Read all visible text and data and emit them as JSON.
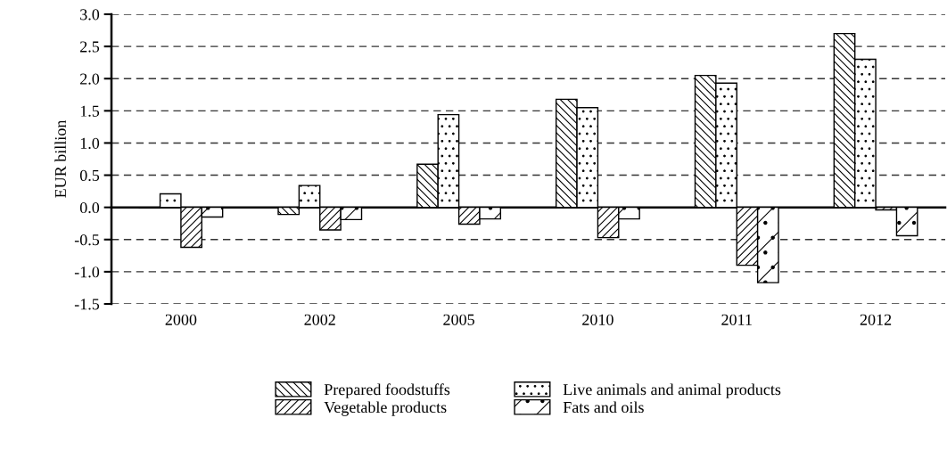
{
  "chart_data": {
    "type": "bar",
    "ylabel": "EUR billion",
    "categories": [
      "2000",
      "2002",
      "2005",
      "2010",
      "2011",
      "2012"
    ],
    "series": [
      {
        "name": "Prepared foodstuffs",
        "color": "#000000",
        "values": [
          -0.01,
          -0.11,
          0.67,
          1.68,
          2.05,
          2.7
        ]
      },
      {
        "name": "Live animals and animal products",
        "color": "#000000",
        "values": [
          0.21,
          0.34,
          1.44,
          1.55,
          1.93,
          2.3
        ]
      },
      {
        "name": "Vegetable products",
        "color": "#000000",
        "values": [
          -0.62,
          -0.35,
          -0.26,
          -0.47,
          -0.9,
          -0.04
        ]
      },
      {
        "name": "Fats and oils",
        "color": "#000000",
        "values": [
          -0.15,
          -0.19,
          -0.18,
          -0.18,
          -1.17,
          -0.44
        ]
      }
    ],
    "ylim": [
      -1.5,
      3.0
    ],
    "yticks": [
      {
        "value": -1.5,
        "label": "-1.5"
      },
      {
        "value": -1.0,
        "label": "-1.0"
      },
      {
        "value": -0.5,
        "label": "-0.5"
      },
      {
        "value": 0.0,
        "label": "0.0"
      },
      {
        "value": 0.5,
        "label": "0.5"
      },
      {
        "value": 1.0,
        "label": "1.0"
      },
      {
        "value": 1.5,
        "label": "1.5"
      },
      {
        "value": 2.0,
        "label": "2.0"
      },
      {
        "value": 2.5,
        "label": "2.5"
      },
      {
        "value": 3.0,
        "label": "3.0"
      }
    ],
    "grid": "y",
    "legend": "bottom"
  }
}
